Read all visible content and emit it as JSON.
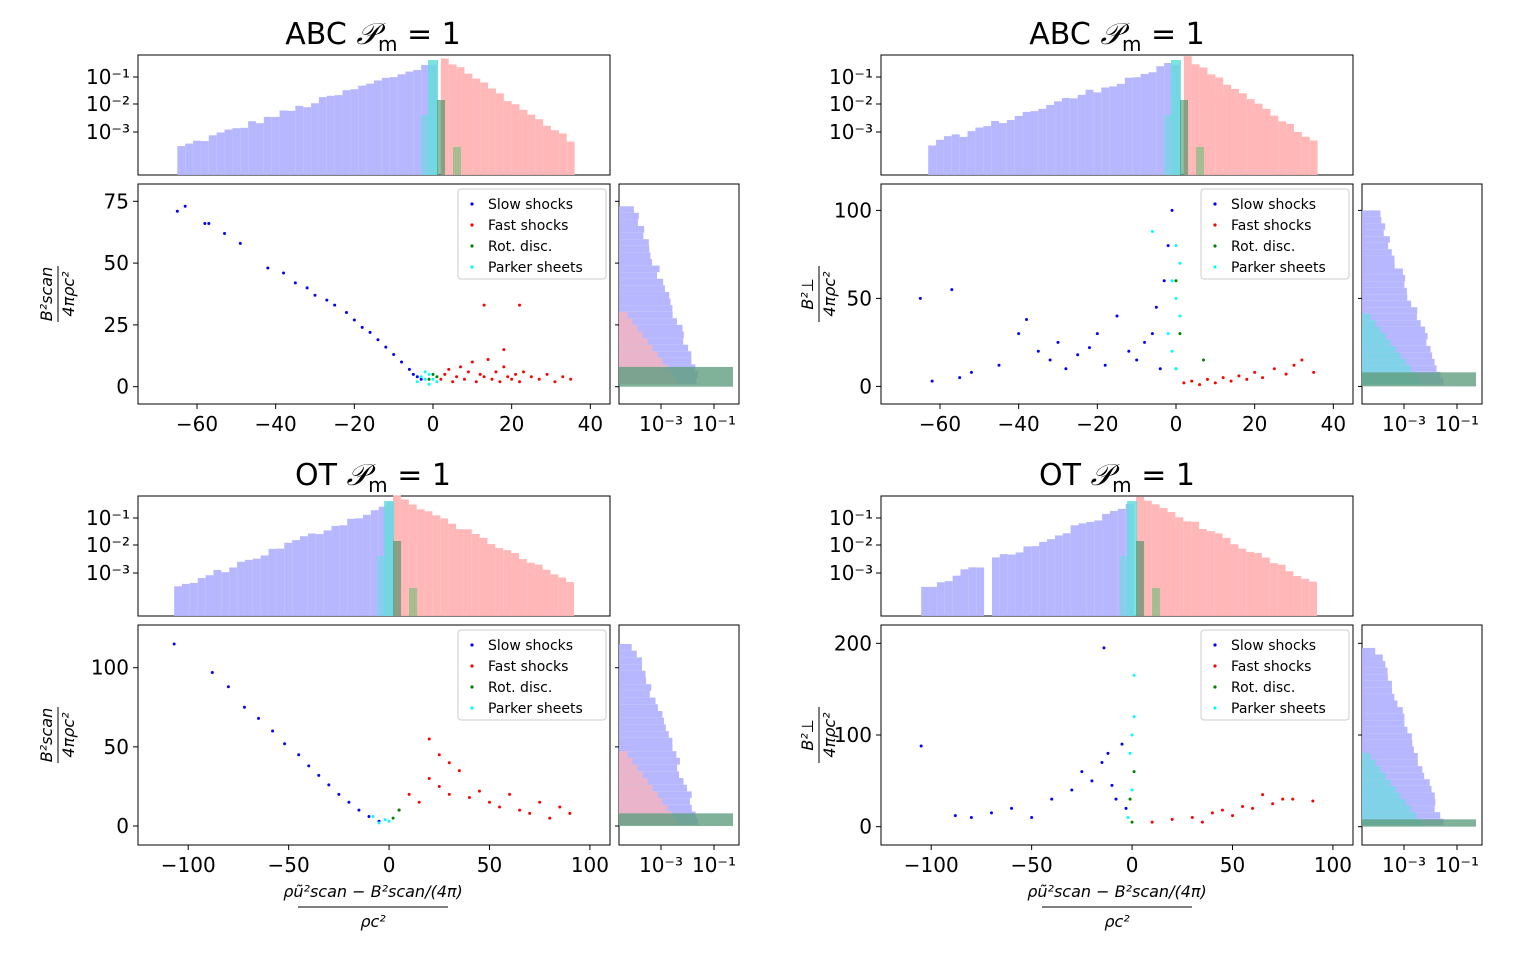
{
  "figure": {
    "panels": [
      {
        "id": "abc-left",
        "title_prefix": "ABC",
        "ylabel_top": "B²scan",
        "ylabel_bottom": "4πρc²",
        "xlabel_top": "",
        "xlabel_bottom": ""
      },
      {
        "id": "abc-right",
        "title_prefix": "ABC",
        "ylabel_top": "B²⊥",
        "ylabel_bottom": "4πρc²",
        "xlabel_top": "",
        "xlabel_bottom": ""
      },
      {
        "id": "ot-left",
        "title_prefix": "OT",
        "ylabel_top": "B²scan",
        "ylabel_bottom": "4πρc²",
        "xlabel_top": "ρũ²scan − B²scan/(4π)",
        "xlabel_bottom": "ρc²"
      },
      {
        "id": "ot-right",
        "title_prefix": "OT",
        "ylabel_top": "B²⊥",
        "ylabel_bottom": "4πρc²",
        "xlabel_top": "ρũ²scan − B²scan/(4π)",
        "xlabel_bottom": "ρc²"
      }
    ],
    "title_suffix": "𝒫",
    "title_sub": "m",
    "title_eq": " = 1",
    "legend": [
      "Slow shocks",
      "Fast shocks",
      "Rot. disc.",
      "Parker sheets"
    ],
    "colors": {
      "slow": "#0000ff",
      "fast": "#ff0000",
      "rot": "#008000",
      "parker": "#00ffff",
      "slow_hist": "#b3b3ff",
      "fast_hist": "#ffb3b3",
      "parker_hist": "#66dddd"
    }
  },
  "chart_data": [
    {
      "type": "scatter",
      "title": "ABC 𝒫m = 1",
      "xlabel": "",
      "ylabel": "B²scan / (4πρc²)",
      "xlim": [
        -75,
        45
      ],
      "ylim": [
        -7,
        82
      ],
      "xticks": [
        "−60",
        "−40",
        "−20",
        "0",
        "20",
        "40"
      ],
      "xtick_values": [
        -60,
        -40,
        -20,
        0,
        20,
        40
      ],
      "yticks": [
        "0",
        "25",
        "50",
        "75"
      ],
      "ytick_values": [
        0,
        25,
        50,
        75
      ],
      "top_hist_yticks": [
        "10⁻¹",
        "10⁻²",
        "10⁻³"
      ],
      "side_hist_xticks": [
        "10⁻³",
        "10⁻¹"
      ],
      "series": [
        {
          "name": "Slow shocks",
          "x": [
            -65,
            -63,
            -58,
            -57,
            -53,
            -49,
            -42,
            -38,
            -35,
            -32,
            -30,
            -27,
            -25,
            -22,
            -20,
            -18,
            -16,
            -14,
            -12,
            -10,
            -8,
            -6,
            -5,
            -4,
            -3
          ],
          "y": [
            71,
            73,
            66,
            66,
            62,
            58,
            48,
            46,
            42,
            40,
            37,
            35,
            33,
            30,
            27,
            24,
            22,
            19,
            16,
            13,
            10,
            7,
            5,
            4,
            3
          ]
        },
        {
          "name": "Fast shocks",
          "x": [
            2,
            3,
            4,
            5,
            6,
            7,
            8,
            9,
            10,
            11,
            12,
            13,
            14,
            15,
            16,
            17,
            18,
            19,
            20,
            21,
            22,
            23,
            25,
            27,
            29,
            31,
            33,
            35,
            13,
            22,
            18
          ],
          "y": [
            3,
            5,
            7,
            2,
            4,
            8,
            3,
            6,
            10,
            2,
            5,
            4,
            11,
            3,
            6,
            2,
            8,
            4,
            3,
            5,
            2,
            6,
            4,
            3,
            5,
            2,
            4,
            3,
            33,
            33,
            15
          ]
        },
        {
          "name": "Rot. disc.",
          "x": [
            -1,
            0,
            1
          ],
          "y": [
            3,
            5,
            4
          ]
        },
        {
          "name": "Parker sheets",
          "x": [
            -4,
            -3,
            -2,
            -1,
            0,
            1,
            -2,
            -1
          ],
          "y": [
            2,
            4,
            3,
            5,
            3,
            2,
            6,
            1
          ]
        }
      ]
    },
    {
      "type": "scatter",
      "title": "ABC 𝒫m = 1",
      "xlabel": "",
      "ylabel": "B²⊥ / (4πρc²)",
      "xlim": [
        -75,
        45
      ],
      "ylim": [
        -10,
        115
      ],
      "xticks": [
        "−60",
        "−40",
        "−20",
        "0",
        "20",
        "40"
      ],
      "xtick_values": [
        -60,
        -40,
        -20,
        0,
        20,
        40
      ],
      "yticks": [
        "0",
        "50",
        "100"
      ],
      "ytick_values": [
        0,
        50,
        100
      ],
      "top_hist_yticks": [
        "10⁻¹",
        "10⁻²",
        "10⁻³"
      ],
      "side_hist_xticks": [
        "10⁻³",
        "10⁻¹"
      ],
      "series": [
        {
          "name": "Slow shocks",
          "x": [
            -65,
            -57,
            -62,
            -55,
            -52,
            -45,
            -40,
            -38,
            -35,
            -32,
            -30,
            -28,
            -25,
            -22,
            -20,
            -18,
            -15,
            -12,
            -10,
            -8,
            -6,
            -5,
            -4,
            -3,
            -2,
            -1
          ],
          "y": [
            50,
            55,
            3,
            5,
            8,
            12,
            30,
            38,
            20,
            15,
            25,
            10,
            18,
            22,
            30,
            12,
            40,
            20,
            15,
            25,
            30,
            45,
            10,
            60,
            80,
            100
          ]
        },
        {
          "name": "Fast shocks",
          "x": [
            2,
            4,
            6,
            8,
            10,
            12,
            14,
            16,
            18,
            20,
            22,
            25,
            28,
            30,
            32,
            35
          ],
          "y": [
            2,
            3,
            1,
            4,
            2,
            5,
            3,
            6,
            4,
            8,
            5,
            10,
            7,
            12,
            15,
            8
          ]
        },
        {
          "name": "Rot. disc.",
          "x": [
            0,
            1,
            0,
            7
          ],
          "y": [
            60,
            30,
            10,
            15
          ]
        },
        {
          "name": "Parker sheets",
          "x": [
            -1,
            0,
            1,
            -2,
            0,
            1,
            -1,
            0,
            -6
          ],
          "y": [
            20,
            50,
            70,
            30,
            80,
            40,
            60,
            10,
            88
          ]
        }
      ]
    },
    {
      "type": "scatter",
      "title": "OT 𝒫m = 1",
      "xlabel": "(ρũ²scan − B²scan/(4π)) / (ρc²)",
      "ylabel": "B²scan / (4πρc²)",
      "xlim": [
        -125,
        110
      ],
      "ylim": [
        -12,
        127
      ],
      "xticks": [
        "−100",
        "−50",
        "0",
        "50",
        "100"
      ],
      "xtick_values": [
        -100,
        -50,
        0,
        50,
        100
      ],
      "yticks": [
        "0",
        "50",
        "100"
      ],
      "ytick_values": [
        0,
        50,
        100
      ],
      "top_hist_yticks": [
        "10⁻¹",
        "10⁻²",
        "10⁻³"
      ],
      "side_hist_xticks": [
        "10⁻³",
        "10⁻¹"
      ],
      "series": [
        {
          "name": "Slow shocks",
          "x": [
            -107,
            -88,
            -80,
            -72,
            -65,
            -58,
            -52,
            -45,
            -40,
            -35,
            -30,
            -25,
            -20,
            -15,
            -10,
            -5
          ],
          "y": [
            115,
            97,
            88,
            75,
            68,
            60,
            52,
            45,
            38,
            32,
            26,
            20,
            15,
            10,
            6,
            3
          ]
        },
        {
          "name": "Fast shocks",
          "x": [
            5,
            10,
            15,
            20,
            25,
            30,
            35,
            40,
            45,
            50,
            55,
            60,
            65,
            70,
            75,
            80,
            85,
            90,
            20,
            25,
            30
          ],
          "y": [
            10,
            20,
            15,
            30,
            25,
            20,
            35,
            18,
            22,
            15,
            12,
            20,
            10,
            8,
            15,
            5,
            12,
            8,
            55,
            45,
            40
          ]
        },
        {
          "name": "Rot. disc.",
          "x": [
            2,
            5
          ],
          "y": [
            5,
            10
          ]
        },
        {
          "name": "Parker sheets",
          "x": [
            -5,
            -2,
            0,
            -8
          ],
          "y": [
            2,
            4,
            3,
            6
          ]
        }
      ]
    },
    {
      "type": "scatter",
      "title": "OT 𝒫m = 1",
      "xlabel": "(ρũ²scan − B²scan/(4π)) / (ρc²)",
      "ylabel": "B²⊥ / (4πρc²)",
      "xlim": [
        -125,
        110
      ],
      "ylim": [
        -20,
        220
      ],
      "xticks": [
        "−100",
        "−50",
        "0",
        "50",
        "100"
      ],
      "xtick_values": [
        -100,
        -50,
        0,
        50,
        100
      ],
      "yticks": [
        "0",
        "100",
        "200"
      ],
      "ytick_values": [
        0,
        100,
        200
      ],
      "top_hist_yticks": [
        "10⁻¹",
        "10⁻²",
        "10⁻³"
      ],
      "side_hist_xticks": [
        "10⁻³",
        "10⁻¹"
      ],
      "series": [
        {
          "name": "Slow shocks",
          "x": [
            -105,
            -88,
            -80,
            -70,
            -60,
            -50,
            -40,
            -30,
            -25,
            -20,
            -15,
            -12,
            -10,
            -8,
            -5,
            -3,
            -14
          ],
          "y": [
            88,
            12,
            10,
            15,
            20,
            10,
            30,
            40,
            60,
            50,
            70,
            80,
            45,
            30,
            90,
            20,
            195
          ]
        },
        {
          "name": "Fast shocks",
          "x": [
            10,
            20,
            30,
            40,
            50,
            60,
            70,
            80,
            90,
            35,
            45,
            55,
            65,
            75
          ],
          "y": [
            5,
            8,
            10,
            15,
            12,
            20,
            25,
            30,
            28,
            5,
            18,
            22,
            35,
            30
          ]
        },
        {
          "name": "Rot. disc.",
          "x": [
            0,
            -1,
            1
          ],
          "y": [
            5,
            30,
            60
          ]
        },
        {
          "name": "Parker sheets",
          "x": [
            -2,
            0,
            1,
            -1,
            0,
            1
          ],
          "y": [
            10,
            40,
            120,
            80,
            100,
            165
          ]
        }
      ]
    }
  ]
}
